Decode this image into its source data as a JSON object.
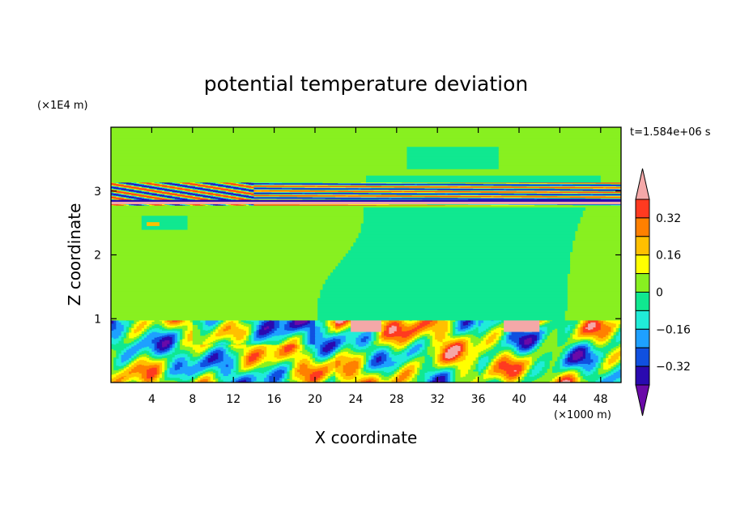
{
  "chart_data": {
    "type": "heatmap",
    "title": "potential temperature deviation",
    "xlabel": "X coordinate",
    "ylabel": "Z coordinate",
    "x_unit": "(×1000 m)",
    "y_unit": "(×1E4 m)",
    "time_label": "t=1.584e+06 s",
    "xlim": [
      0,
      50
    ],
    "ylim": [
      0,
      4
    ],
    "x_ticks": [
      4,
      8,
      12,
      16,
      20,
      24,
      28,
      32,
      36,
      40,
      44,
      48
    ],
    "x_tick_labels": [
      "4",
      "8",
      "12",
      "16",
      "20",
      "24",
      "28",
      "32",
      "36",
      "40",
      "44",
      "48"
    ],
    "y_ticks": [
      1,
      2,
      3
    ],
    "y_tick_labels": [
      "1",
      "2",
      "3"
    ],
    "colorbar": {
      "levels": [
        -0.4,
        -0.32,
        -0.24,
        -0.16,
        -0.08,
        0,
        0.08,
        0.16,
        0.24,
        0.32,
        0.4
      ],
      "colors": [
        "#6a0aa8",
        "#2a0ab0",
        "#1050e0",
        "#1ea0ff",
        "#20ecd8",
        "#10e890",
        "#88f020",
        "#ffff00",
        "#ffc000",
        "#ff8000",
        "#ff3a20",
        "#f4a8a8"
      ],
      "tick_values": [
        0.32,
        0.16,
        0,
        -0.16,
        -0.32
      ],
      "tick_labels": [
        "0.32",
        "0.16",
        "0",
        "−0.16",
        "−0.32"
      ]
    },
    "regions": [
      {
        "x": [
          0,
          50
        ],
        "z": [
          1.0,
          4.0
        ],
        "value": 0.04
      },
      {
        "x": [
          20.5,
          48
        ],
        "z": [
          1.0,
          2.75
        ],
        "value": -0.04
      },
      {
        "x": [
          0,
          50
        ],
        "z": [
          0.0,
          1.0
        ],
        "value": "turbulent mix, -0.4 to 0.4"
      },
      {
        "x": [
          0,
          50
        ],
        "z": [
          2.8,
          3.1
        ],
        "value": "banded, -0.4 to 0.4"
      }
    ]
  }
}
